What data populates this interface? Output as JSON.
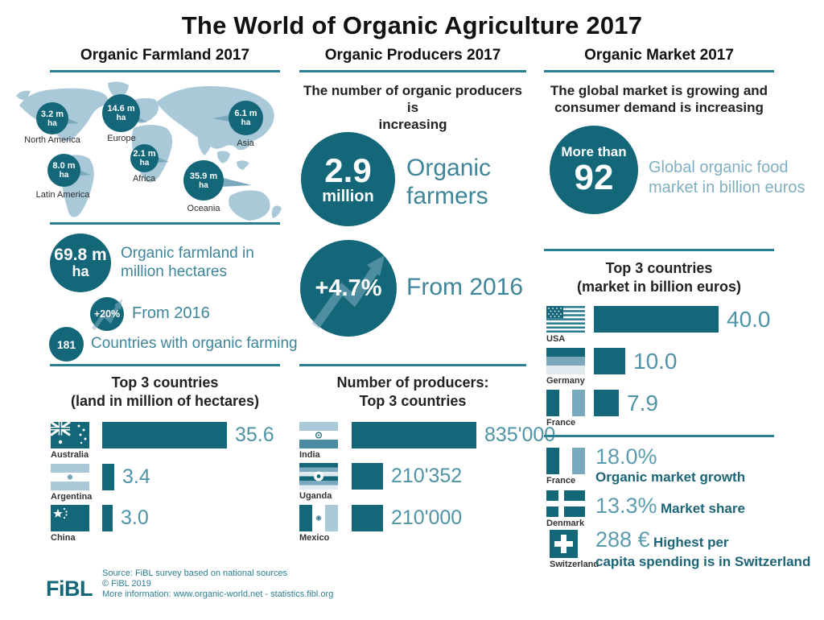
{
  "title": "The World of Organic Agriculture 2017",
  "colors": {
    "accent": "#136779",
    "map_land": "#a9c8d8",
    "pointer": "#7aa9bd",
    "teal_text": "#3e8599",
    "light_teal_text": "#7fb0c1",
    "value_text": "#4e93a6"
  },
  "farmland": {
    "header": "Organic Farmland 2017",
    "total_value": "69.8 m",
    "total_unit": "ha",
    "total_label_line1": "Organic farmland in",
    "total_label_line2": "million hectares",
    "growth_value": "+20%",
    "growth_label": "From 2016",
    "countries_value": "181",
    "countries_label": "Countries with organic farming",
    "top3_title_line1": "Top 3 countries",
    "top3_title_line2": "(land in million of hectares)"
  },
  "producers": {
    "header": "Organic Producers 2017",
    "intro_line1": "The number of organic producers is",
    "intro_line2": "increasing",
    "big_value": "2.9",
    "big_unit": "million",
    "big_label_line1": "Organic",
    "big_label_line2": "farmers",
    "growth_value": "+4.7%",
    "growth_label": "From 2016",
    "top3_title_line1": "Number of producers:",
    "top3_title_line2": "Top 3 countries"
  },
  "market": {
    "header": "Organic Market 2017",
    "intro_line1": "The global market is growing and",
    "intro_line2": "consumer demand is increasing",
    "big_value_line1": "More than",
    "big_value_line2": "92",
    "big_label_line1": "Global organic food",
    "big_label_line2": "market in billion euros",
    "top3_title_line1": "Top 3 countries",
    "top3_title_line2": "(market in billion euros)",
    "stats": [
      {
        "country": "France",
        "value": "18.0%",
        "label": "Organic market growth"
      },
      {
        "country": "Denmark",
        "value": "13.3%",
        "label": "Market share"
      },
      {
        "country": "Switzerland",
        "value": "288 €",
        "label_line1": "Highest per",
        "label_line2": "capita spending is in Switzerland"
      }
    ]
  },
  "map": {
    "regions": [
      {
        "name": "North America",
        "value": "3.2 m",
        "unit": "ha"
      },
      {
        "name": "Europe",
        "value": "14.6 m",
        "unit": "ha"
      },
      {
        "name": "Asia",
        "value": "6.1 m",
        "unit": "ha"
      },
      {
        "name": "Africa",
        "value": "2.1 m",
        "unit": "ha"
      },
      {
        "name": "Latin America",
        "value": "8.0 m",
        "unit": "ha"
      },
      {
        "name": "Oceania",
        "value": "35.9 m",
        "unit": "ha"
      }
    ]
  },
  "footer": {
    "logo": "FiBL",
    "line1": "Source: FiBL survey based on national sources",
    "line2": "© FiBL 2019",
    "line3": "More information: www.organic-world.net - statistics.fibl.org"
  },
  "chart_data": [
    {
      "type": "bubble-map",
      "title": "Organic farmland by world region (million hectares)",
      "regions": [
        "North America",
        "Europe",
        "Asia",
        "Africa",
        "Latin America",
        "Oceania"
      ],
      "values": [
        3.2,
        14.6,
        6.1,
        2.1,
        8.0,
        35.9
      ],
      "unit": "million ha"
    },
    {
      "type": "bar",
      "title": "Top 3 countries (land in million of hectares)",
      "categories": [
        "Australia",
        "Argentina",
        "China"
      ],
      "values": [
        35.6,
        3.4,
        3.0
      ],
      "value_labels": [
        "35.6",
        "3.4",
        "3.0"
      ],
      "xlim": [
        0,
        35.6
      ],
      "legend": "none"
    },
    {
      "type": "bar",
      "title": "Number of producers: Top 3 countries",
      "categories": [
        "India",
        "Uganda",
        "Mexico"
      ],
      "values": [
        835000,
        210352,
        210000
      ],
      "value_labels": [
        "835'000",
        "210'352",
        "210'000"
      ],
      "xlim": [
        0,
        835000
      ],
      "legend": "none"
    },
    {
      "type": "bar",
      "title": "Top 3 countries (market in billion euros)",
      "categories": [
        "USA",
        "Germany",
        "France"
      ],
      "values": [
        40.0,
        10.0,
        7.9
      ],
      "value_labels": [
        "40.0",
        "10.0",
        "7.9"
      ],
      "xlim": [
        0,
        40
      ],
      "legend": "none"
    }
  ]
}
